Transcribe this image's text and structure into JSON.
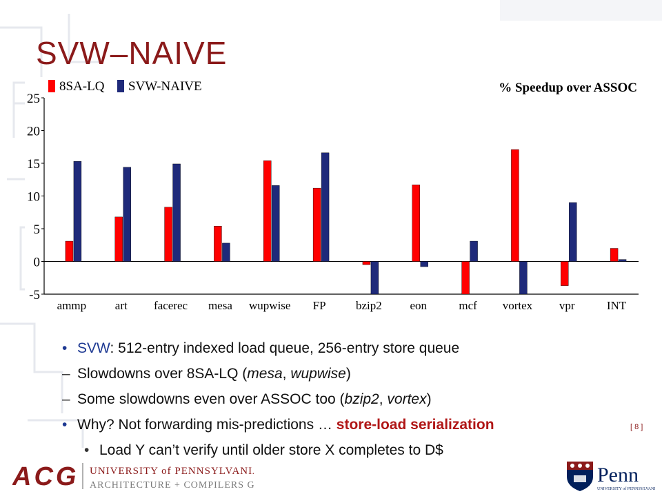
{
  "slide": {
    "title": "SVW–NAIVE",
    "page_number": "[ 8 ]"
  },
  "chart_data": {
    "type": "bar",
    "title": "% Speedup over ASSOC",
    "xlabel": "",
    "ylabel": "",
    "ylim": [
      -5,
      25
    ],
    "yticks": [
      -5,
      0,
      5,
      10,
      15,
      20,
      25
    ],
    "grid": false,
    "legend_position": "top-left",
    "categories": [
      "ammp",
      "art",
      "facerec",
      "mesa",
      "wupwise",
      "FP",
      "bzip2",
      "eon",
      "mcf",
      "vortex",
      "vpr",
      "INT"
    ],
    "series": [
      {
        "name": "8SA-LQ",
        "color": "#ff0000",
        "values": [
          3.1,
          6.8,
          8.3,
          5.4,
          15.4,
          11.2,
          -0.5,
          11.7,
          -5.0,
          17.1,
          -3.7,
          2.0
        ]
      },
      {
        "name": "SVW-NAIVE",
        "color": "#1f2a7a",
        "values": [
          15.3,
          14.4,
          14.9,
          2.8,
          11.6,
          16.6,
          -5.0,
          -0.8,
          3.1,
          -5.0,
          9.0,
          0.3
        ]
      }
    ]
  },
  "bullets": [
    {
      "level": 1,
      "marker": "•",
      "parts": [
        {
          "text": "SVW",
          "style": "blue"
        },
        {
          "text": ": 512-entry indexed load queue, 256-entry store queue",
          "style": "normal"
        }
      ]
    },
    {
      "level": 1,
      "marker": "–",
      "parts": [
        {
          "text": "Slowdowns over 8SA-LQ (",
          "style": "normal"
        },
        {
          "text": "mesa",
          "style": "italic"
        },
        {
          "text": ", ",
          "style": "normal"
        },
        {
          "text": "wupwise",
          "style": "italic"
        },
        {
          "text": ")",
          "style": "normal"
        }
      ]
    },
    {
      "level": 1,
      "marker": "–",
      "parts": [
        {
          "text": "Some slowdowns even over ASSOC too (",
          "style": "normal"
        },
        {
          "text": "bzip2",
          "style": "italic"
        },
        {
          "text": ", ",
          "style": "normal"
        },
        {
          "text": "vortex",
          "style": "italic"
        },
        {
          "text": ")",
          "style": "normal"
        }
      ]
    },
    {
      "level": 1,
      "marker": "•",
      "parts": [
        {
          "text": "Why? Not forwarding mis-predictions … ",
          "style": "normal"
        },
        {
          "text": "store-load serialization",
          "style": "red"
        }
      ]
    },
    {
      "level": 2,
      "marker": "•",
      "parts": [
        {
          "text": "Load Y can’t verify until older store X completes to D$",
          "style": "normal"
        }
      ]
    }
  ],
  "logos": {
    "acg_letters": "ACG",
    "university_line": "UNIVERSITY of PENNSYLVANIA",
    "group_line": "ARCHITECTURE + COMPILERS GROUP",
    "penn_name": "Penn",
    "penn_sub": "UNIVERSITY of PENNSYLVANIA",
    "brand_color": "#8b1a1a",
    "penn_blue": "#011f5b"
  }
}
